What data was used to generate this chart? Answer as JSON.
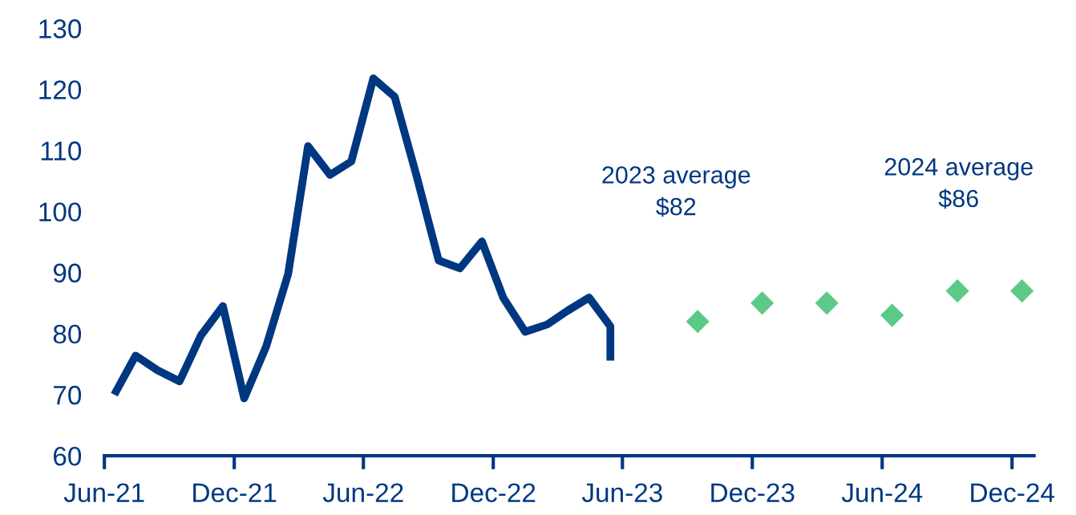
{
  "chart_data": {
    "type": "line",
    "series": [
      {
        "color": "#003781",
        "line_style": "solid",
        "marker": "none",
        "x": [
          "2021-06-15",
          "2021-07-15",
          "2021-08-15",
          "2021-09-15",
          "2021-10-15",
          "2021-11-15",
          "2021-12-15",
          "2022-01-15",
          "2022-02-15",
          "2022-03-15",
          "2022-04-15",
          "2022-05-15",
          "2022-06-15",
          "2022-07-15",
          "2022-08-15",
          "2022-09-15",
          "2022-10-15",
          "2022-11-15",
          "2022-12-15",
          "2023-01-15",
          "2023-02-15",
          "2023-03-15",
          "2023-04-15",
          "2023-05-15",
          "2023-05-15"
        ],
        "values": [
          70,
          76.4,
          74,
          72.2,
          79.7,
          84.5,
          69.4,
          77.9,
          89.8,
          110.7,
          106,
          108.2,
          121.8,
          118.8,
          105.8,
          92,
          90.7,
          95.1,
          85.9,
          80.3,
          81.5,
          83.7,
          85.9,
          81.2,
          75.6
        ]
      },
      {
        "type": "scatter",
        "color": "#5cc987",
        "marker": "diamond",
        "x": [
          "2023-09-15",
          "2023-12-15",
          "2024-03-15",
          "2024-06-15",
          "2024-09-15",
          "2024-12-15"
        ],
        "values": [
          82,
          85,
          85,
          83,
          87,
          87
        ]
      }
    ],
    "annotations": [
      "2023 average\n$82",
      "2024 average\n$86"
    ],
    "xlim": [
      "2021-06-01",
      "2025-01-01"
    ],
    "xticks": [
      {
        "value": "2021-06-01",
        "label": "Jun-21"
      },
      {
        "value": "2021-12-01",
        "label": "Dec-21"
      },
      {
        "value": "2022-06-01",
        "label": "Jun-22"
      },
      {
        "value": "2022-12-01",
        "label": "Dec-22"
      },
      {
        "value": "2023-06-01",
        "label": "Jun-23"
      },
      {
        "value": "2023-12-01",
        "label": "Dec-23"
      },
      {
        "value": "2024-06-01",
        "label": "Jun-24"
      },
      {
        "value": "2024-12-01",
        "label": "Dec-24"
      }
    ],
    "ylim": [
      60,
      130
    ],
    "yticks": [
      60,
      70,
      80,
      90,
      100,
      110,
      120,
      130
    ],
    "grid": false,
    "legend": false
  }
}
